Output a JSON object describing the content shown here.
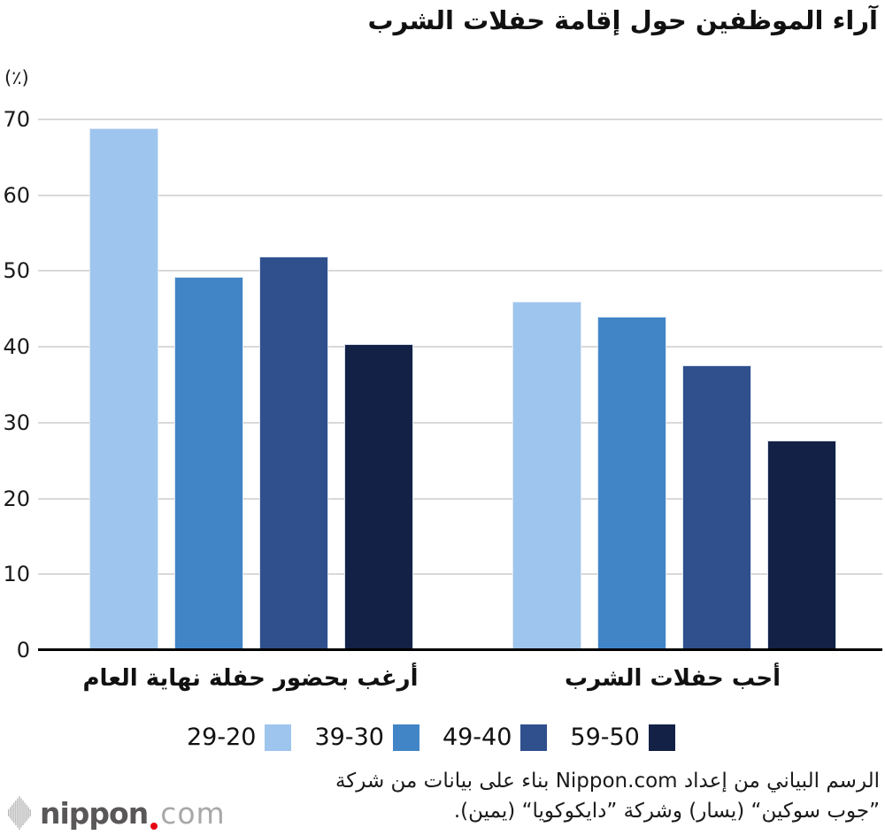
{
  "title": "آراء الموظفين حول إقامة حفلات الشرب",
  "y_axis": {
    "unit_label": "(٪)",
    "ticks": [
      "0",
      "10",
      "20",
      "30",
      "40",
      "50",
      "60",
      "70"
    ]
  },
  "chart_data": {
    "type": "bar",
    "title": "آراء الموظفين حول إقامة حفلات الشرب",
    "ylabel": "(٪)",
    "ylim": [
      0,
      70
    ],
    "ytick_step": 10,
    "grid": true,
    "legend_position": "bottom",
    "rtl": true,
    "categories": [
      "أرغب بحضور حفلة نهاية العام",
      "أحب حفلات الشرب"
    ],
    "series": [
      {
        "name": "29-20",
        "color": "#9ec5ed",
        "values": [
          68.8,
          46.0
        ]
      },
      {
        "name": "39-30",
        "color": "#4285c7",
        "values": [
          49.2,
          44.0
        ]
      },
      {
        "name": "49-40",
        "color": "#2f508d",
        "values": [
          51.9,
          37.6
        ]
      },
      {
        "name": "59-50",
        "color": "#132147",
        "values": [
          40.4,
          27.6
        ]
      }
    ]
  },
  "footer": {
    "attribution_line1": "الرسم البياني من إعداد Nippon.com بناء على بيانات من شركة",
    "attribution_line2": "”جوب سوكين“ (يسار) وشركة ”دايكوكويا“ (يمين).",
    "logo": {
      "brand": "nippon",
      "dot": ".",
      "tld": "com"
    }
  },
  "colors": {
    "grid": "#d9d9d9",
    "axis": "#000000",
    "text": "#111111",
    "logo_gray": "#595757",
    "logo_light": "#a8a8a8",
    "logo_red": "#e60012"
  }
}
